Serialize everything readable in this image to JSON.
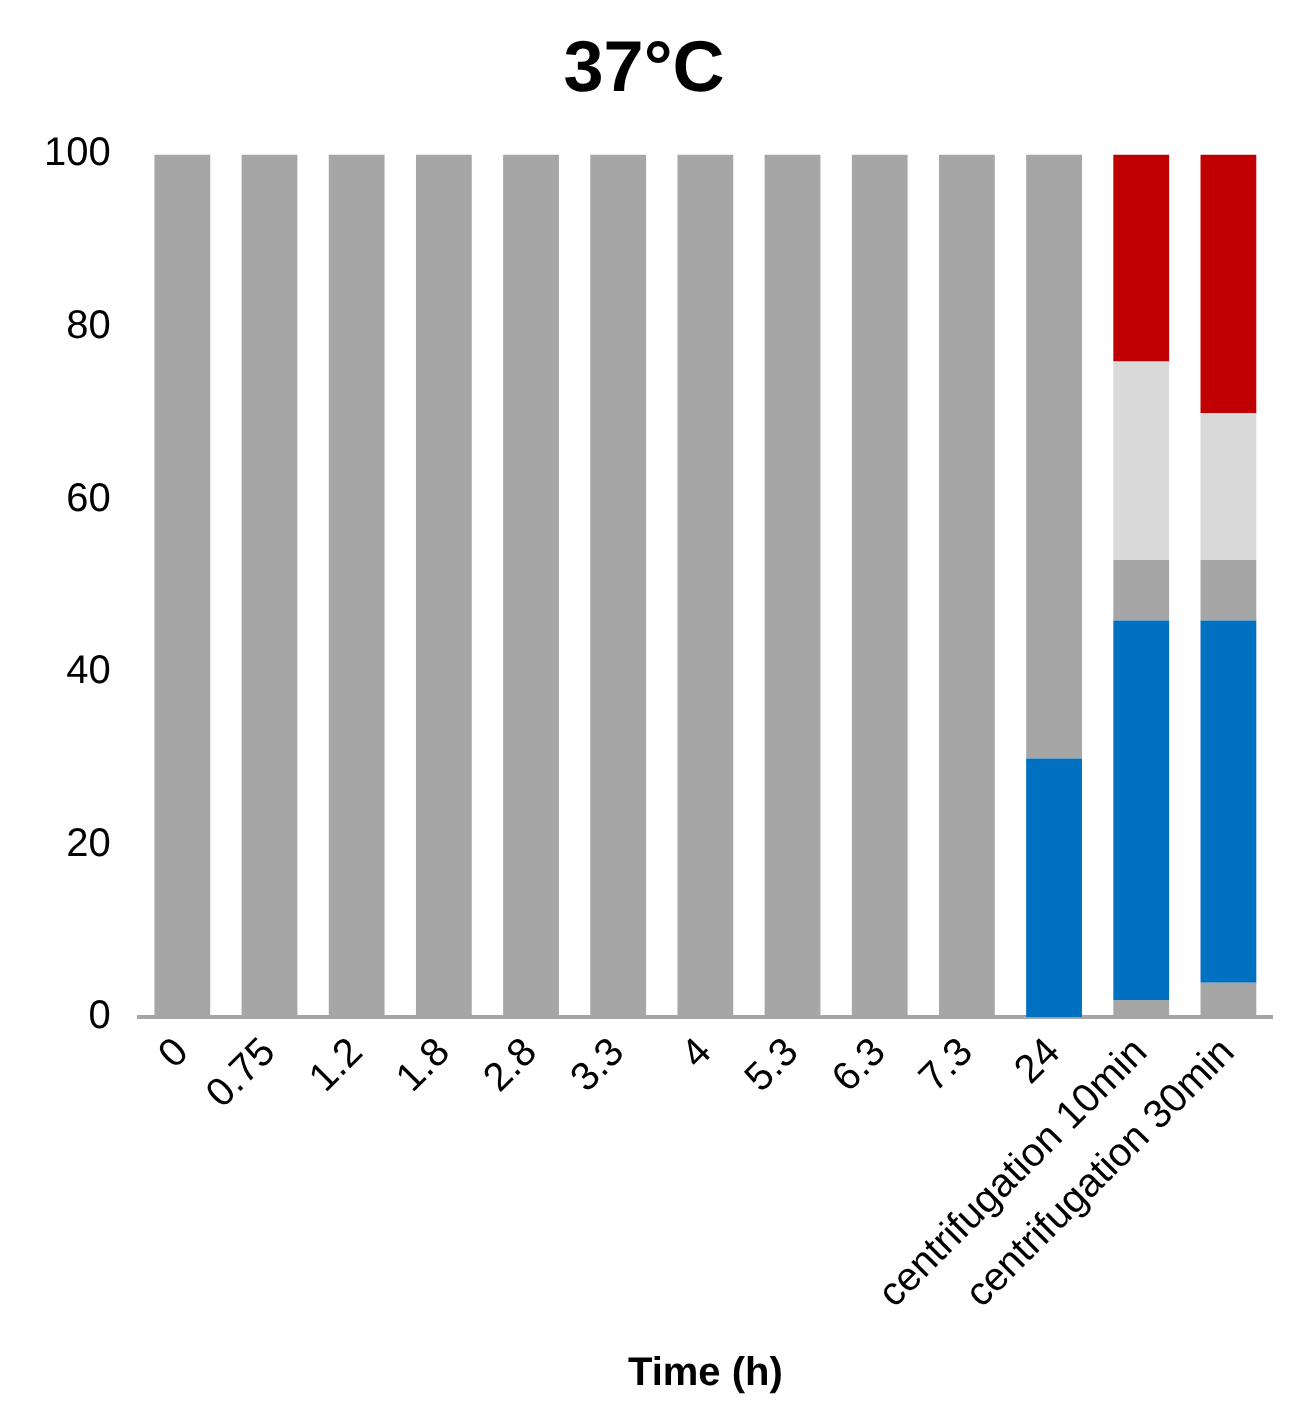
{
  "chart_data": {
    "type": "bar",
    "title": "37°C",
    "xlabel": "Time (h)",
    "categories": [
      "0",
      "0.75",
      "1.2",
      "1.8",
      "2.8",
      "3.3",
      "4",
      "5.3",
      "6.3",
      "7.3",
      "24",
      "centrifugation 10min",
      "centrifugation 30min"
    ],
    "stacked": true,
    "ylim": [
      0,
      100
    ],
    "yticks": [
      0,
      20,
      40,
      60,
      80,
      100
    ],
    "grid": false,
    "legend": false,
    "series": [
      {
        "color": "#a6a6a6",
        "values": [
          100,
          100,
          100,
          100,
          100,
          100,
          100,
          100,
          100,
          100,
          0,
          2,
          4
        ]
      },
      {
        "color": "#0070c0",
        "values": [
          0,
          0,
          0,
          0,
          0,
          0,
          0,
          0,
          0,
          0,
          30,
          44,
          42
        ]
      },
      {
        "color": "#a6a6a6",
        "values": [
          0,
          0,
          0,
          0,
          0,
          0,
          0,
          0,
          0,
          0,
          70,
          7,
          7
        ]
      },
      {
        "color": "#d9d9d9",
        "values": [
          0,
          0,
          0,
          0,
          0,
          0,
          0,
          0,
          0,
          0,
          0,
          23,
          17
        ]
      },
      {
        "color": "#c00000",
        "values": [
          0,
          0,
          0,
          0,
          0,
          0,
          0,
          0,
          0,
          0,
          0,
          24,
          30
        ]
      }
    ]
  }
}
